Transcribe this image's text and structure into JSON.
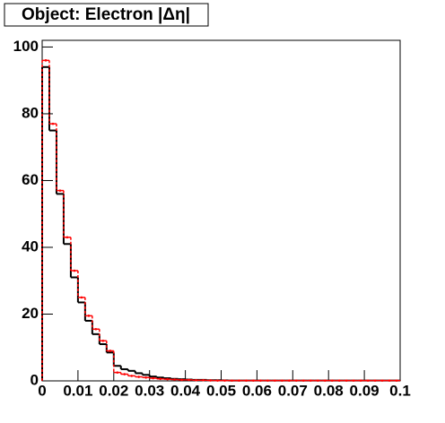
{
  "chart_data": {
    "type": "histogram",
    "title": "Object: Electron |Δη|",
    "bins": [
      0,
      0.002,
      0.004,
      0.006,
      0.008,
      0.01,
      0.012,
      0.014,
      0.016,
      0.018,
      0.02,
      0.022,
      0.024,
      0.026,
      0.028,
      0.03,
      0.032,
      0.034,
      0.036,
      0.038,
      0.04,
      0.042,
      0.044,
      0.046,
      0.048,
      0.05,
      0.052,
      0.054,
      0.056,
      0.058,
      0.06,
      0.062,
      0.064,
      0.066,
      0.068,
      0.07,
      0.072,
      0.074,
      0.076,
      0.078,
      0.08,
      0.082,
      0.084,
      0.086,
      0.088,
      0.09,
      0.092,
      0.094,
      0.096,
      0.098,
      0.1
    ],
    "series": [
      {
        "color": "#000000",
        "values": [
          94,
          75,
          56,
          41,
          31,
          23.5,
          18,
          14,
          11,
          8.5,
          4.5,
          3.5,
          3,
          2.3,
          1.8,
          1.3,
          1,
          0.8,
          0.6,
          0.5,
          0.4,
          0.3,
          0.3,
          0.2,
          0.2,
          0.15,
          0.1,
          0.1,
          0.1,
          0.1,
          0.1,
          0.1,
          0.1,
          0.1,
          0.1,
          0.1,
          0.1,
          0.1,
          0.1,
          0.1,
          0.1,
          0.1,
          0.1,
          0.1,
          0.1,
          0.1,
          0.1,
          0.1,
          0.1,
          0.1
        ]
      },
      {
        "color": "#ff0000",
        "values": [
          96,
          77,
          57,
          43,
          33,
          25,
          19.5,
          15.5,
          12,
          9,
          2.5,
          2,
          1.5,
          1.2,
          1,
          0.8,
          0.6,
          0.5,
          0.4,
          0.3,
          0.3,
          0.2,
          0.2,
          0.15,
          0.1,
          0.1,
          0.1,
          0.1,
          0.1,
          0.1,
          0.1,
          0.1,
          0.1,
          0.1,
          0.1,
          0.1,
          0.1,
          0.1,
          0.1,
          0.1,
          0.1,
          0.1,
          0.1,
          0.1,
          0.1,
          0.1,
          0.1,
          0.1,
          0.1,
          0.1
        ]
      }
    ],
    "xlim": [
      0,
      0.1
    ],
    "xticks": [
      0,
      0.01,
      0.02,
      0.03,
      0.04,
      0.05,
      0.06,
      0.07,
      0.08,
      0.09,
      0.1
    ],
    "ylim": [
      0,
      102
    ],
    "yticks": [
      0,
      20,
      40,
      60,
      80,
      100
    ]
  }
}
